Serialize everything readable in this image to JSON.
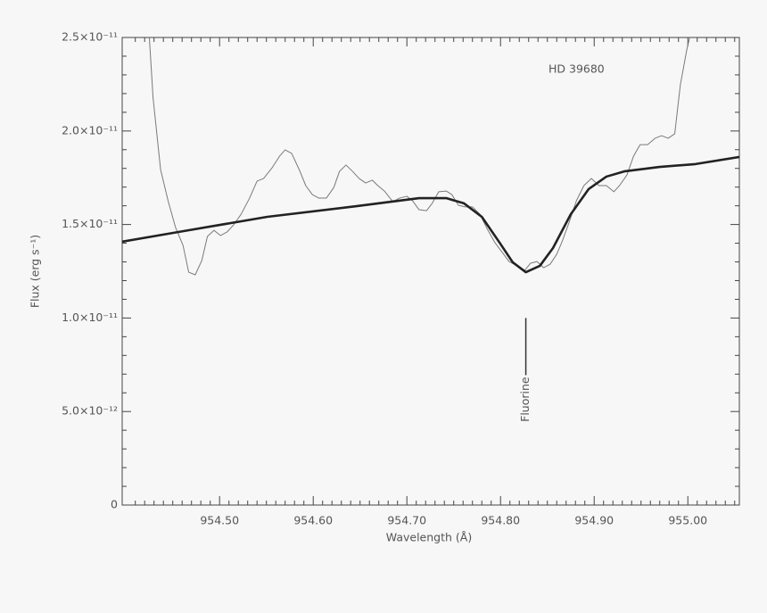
{
  "chart_data": {
    "type": "line",
    "xlabel": "Wavelength (Å)",
    "ylabel": "Flux (erg s⁻¹)",
    "annotations": [
      {
        "text": "HD 39680"
      },
      {
        "text": "Fluorine",
        "x": 954.827,
        "y": 1e-11
      }
    ],
    "xlim": [
      954.396,
      955.055
    ],
    "ylim": [
      0,
      2.5e-11
    ],
    "xticks": [
      {
        "value": 954.5,
        "label": "954.50"
      },
      {
        "value": 954.6,
        "label": "954.60"
      },
      {
        "value": 954.7,
        "label": "954.70"
      },
      {
        "value": 954.8,
        "label": "954.80"
      },
      {
        "value": 954.9,
        "label": "954.90"
      },
      {
        "value": 955.0,
        "label": "955.00"
      }
    ],
    "yticks": [
      0,
      {
        "value": 5e-12,
        "label": "5.0×10⁻¹²"
      },
      {
        "value": 1e-11,
        "label": "1.0×10⁻¹¹"
      },
      {
        "value": 1.5e-11,
        "label": "1.5×10⁻¹¹"
      },
      {
        "value": 2e-11,
        "label": "2.0×10⁻¹¹"
      },
      {
        "value": 2.5e-11,
        "label": "2.5×10⁻¹¹"
      }
    ],
    "series": [
      {
        "color": "#7a7a7a",
        "width": 1,
        "x": [
          954.425,
          954.429,
          954.437,
          954.445,
          954.453,
          954.461,
          954.467,
          954.474,
          954.481,
          954.487,
          954.494,
          954.501,
          954.508,
          954.515,
          954.523,
          954.532,
          954.54,
          954.547,
          954.556,
          954.564,
          954.57,
          954.577,
          954.585,
          954.592,
          954.599,
          954.606,
          954.614,
          954.622,
          954.628,
          954.635,
          954.642,
          954.649,
          954.656,
          954.663,
          954.669,
          954.676,
          954.685,
          954.692,
          954.7,
          954.706,
          954.713,
          954.721,
          954.727,
          954.734,
          954.742,
          954.748,
          954.755,
          954.762,
          954.77,
          954.778,
          954.786,
          954.794,
          954.802,
          954.809,
          954.818,
          954.826,
          954.832,
          954.839,
          954.846,
          954.853,
          954.86,
          954.866,
          954.873,
          954.881,
          954.889,
          954.897,
          954.905,
          954.913,
          954.921,
          954.927,
          954.935,
          954.942,
          954.949,
          954.957,
          954.965,
          954.972,
          954.979,
          954.986,
          954.992,
          954.999,
          955.002
        ],
        "values": [
          2.5e-11,
          2.176e-11,
          1.794e-11,
          1.627e-11,
          1.484e-11,
          1.388e-11,
          1.245e-11,
          1.231e-11,
          1.307e-11,
          1.436e-11,
          1.469e-11,
          1.441e-11,
          1.46e-11,
          1.498e-11,
          1.555e-11,
          1.641e-11,
          1.732e-11,
          1.746e-11,
          1.803e-11,
          1.865e-11,
          1.899e-11,
          1.88e-11,
          1.794e-11,
          1.708e-11,
          1.66e-11,
          1.641e-11,
          1.641e-11,
          1.698e-11,
          1.784e-11,
          1.818e-11,
          1.784e-11,
          1.746e-11,
          1.722e-11,
          1.737e-11,
          1.708e-11,
          1.679e-11,
          1.622e-11,
          1.641e-11,
          1.651e-11,
          1.627e-11,
          1.579e-11,
          1.574e-11,
          1.613e-11,
          1.675e-11,
          1.679e-11,
          1.66e-11,
          1.603e-11,
          1.594e-11,
          1.594e-11,
          1.555e-11,
          1.474e-11,
          1.403e-11,
          1.35e-11,
          1.302e-11,
          1.279e-11,
          1.255e-11,
          1.293e-11,
          1.302e-11,
          1.269e-11,
          1.288e-11,
          1.341e-11,
          1.412e-11,
          1.508e-11,
          1.627e-11,
          1.708e-11,
          1.746e-11,
          1.708e-11,
          1.708e-11,
          1.675e-11,
          1.708e-11,
          1.765e-11,
          1.865e-11,
          1.927e-11,
          1.927e-11,
          1.961e-11,
          1.975e-11,
          1.961e-11,
          1.985e-11,
          2.247e-11,
          2.438e-11,
          2.5e-11
        ]
      },
      {
        "color": "#222222",
        "width": 2.6,
        "x": [
          954.396,
          954.456,
          954.551,
          954.646,
          954.713,
          954.742,
          954.761,
          954.78,
          954.799,
          954.813,
          954.827,
          954.842,
          954.856,
          954.875,
          954.894,
          954.913,
          954.932,
          954.97,
          955.008,
          955.055
        ],
        "values": [
          1.408e-11,
          1.46e-11,
          1.541e-11,
          1.598e-11,
          1.641e-11,
          1.641e-11,
          1.613e-11,
          1.541e-11,
          1.403e-11,
          1.298e-11,
          1.245e-11,
          1.279e-11,
          1.374e-11,
          1.555e-11,
          1.689e-11,
          1.756e-11,
          1.784e-11,
          1.808e-11,
          1.823e-11,
          1.861e-11
        ]
      }
    ]
  }
}
